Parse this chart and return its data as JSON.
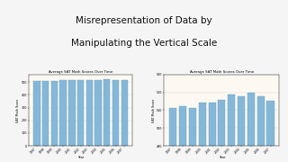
{
  "title_line1": "Misrepresentation of Data by",
  "title_line2": "Manipulating the Vertical Scale",
  "chart_title": "Average SAT Math Scores Over Time",
  "xlabel": "Year",
  "ylabel": "SAT Math Score",
  "years": [
    "1997",
    "1998",
    "1999",
    "2000",
    "2001",
    "2002",
    "2003",
    "2004",
    "2005",
    "2006",
    "2007"
  ],
  "values": [
    511,
    512,
    511,
    514,
    514,
    516,
    519,
    518,
    520,
    518,
    515
  ],
  "bar_color": "#85b8d8",
  "bar_edge_color": "#6aa0c0",
  "bg_color": "#f5f5f5",
  "title_color": "#111111",
  "ylim_left": [
    0,
    560
  ],
  "ylim_right": [
    490,
    530
  ],
  "yticks_left": [
    0,
    100,
    200,
    300,
    400,
    500
  ],
  "yticks_right": [
    490,
    500,
    510,
    520,
    530
  ],
  "grid_color": "#dddddd",
  "chart_bg": "#fdf9f2",
  "slide_top_bar_color": "#5cb85c"
}
